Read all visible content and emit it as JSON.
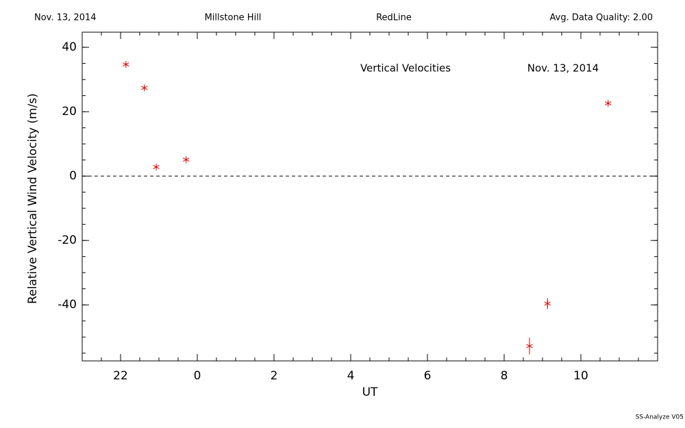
{
  "header": {
    "date": "Nov. 13, 2014",
    "site": "Millstone Hill",
    "filter": "RedLine",
    "quality": "Avg. Data Quality: 2.00"
  },
  "footer": "SS-Analyze V05",
  "chart_data": {
    "type": "scatter",
    "xlabel": "UT",
    "ylabel": "Relative Vertical Wind Velocity (m/s)",
    "annotations": [
      "Vertical Velocities",
      "Nov. 13, 2014"
    ],
    "x": [
      -1.86,
      -1.38,
      -1.07,
      -0.29,
      8.66,
      9.13,
      10.71
    ],
    "values": [
      34.7,
      27.4,
      2.8,
      5.1,
      -52.8,
      -39.6,
      22.6
    ],
    "errors": [
      0.5,
      0.5,
      0.5,
      0.5,
      2.6,
      1.7,
      0.6
    ],
    "color": "#e00000",
    "xlim": [
      -3,
      12
    ],
    "ylim": [
      -57.4,
      44.7
    ],
    "xticks": [
      {
        "value": -2,
        "label": "22"
      },
      0,
      2,
      4,
      6,
      8,
      10
    ],
    "yticks": [
      -40,
      -20,
      0,
      20,
      40
    ],
    "xminor": 0.5,
    "yminor": 5,
    "reference_line": 0
  }
}
